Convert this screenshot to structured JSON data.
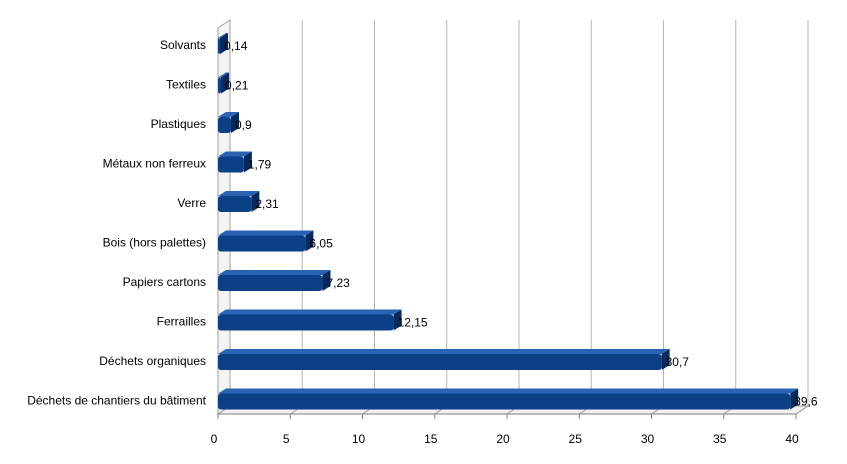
{
  "chart_data": {
    "type": "bar",
    "orientation": "horizontal",
    "title": "",
    "xlabel": "",
    "ylabel": "",
    "xlim": [
      0,
      40
    ],
    "x_ticks": [
      "0",
      "5",
      "10",
      "15",
      "20",
      "25",
      "30",
      "35",
      "40"
    ],
    "grid": "vertical",
    "categories": [
      "Solvants",
      "Textiles",
      "Plastiques",
      "Métaux non ferreux",
      "Verre",
      "Bois (hors palettes)",
      "Papiers cartons",
      "Ferrailles",
      "Déchets organiques",
      "Déchets de chantiers du bâtiment"
    ],
    "values": [
      0.14,
      0.21,
      0.9,
      1.79,
      2.31,
      6.05,
      7.23,
      12.15,
      30.7,
      39.6
    ],
    "value_labels": [
      "0,14",
      "0,21",
      "0,9",
      "1,79",
      "2,31",
      "6,05",
      "7,23",
      "12,15",
      "30,7",
      "39,6"
    ],
    "bar_color": "#0b3f86",
    "bar_top_color": "#2a63b3",
    "bar_side_color": "#062a5e"
  }
}
